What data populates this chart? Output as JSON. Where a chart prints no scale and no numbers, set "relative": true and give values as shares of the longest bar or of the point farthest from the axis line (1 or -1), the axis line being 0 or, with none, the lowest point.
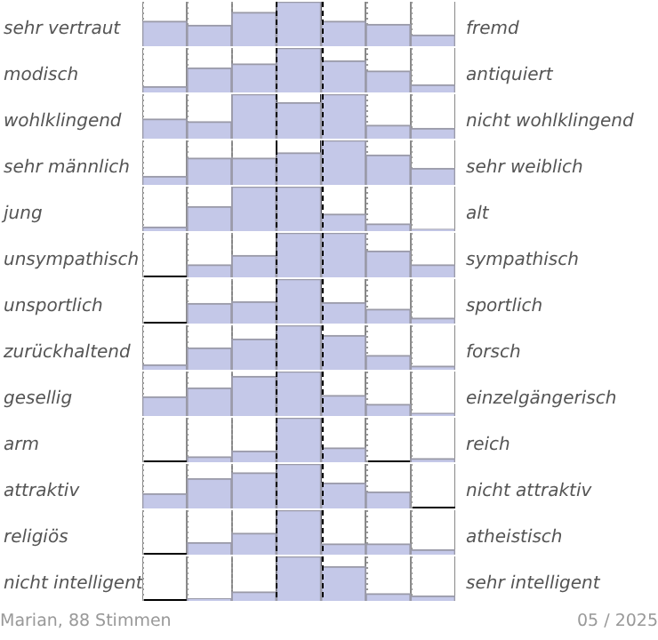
{
  "chart_data": [
    {
      "type": "bar",
      "relative": true,
      "ylabel": "sehr vertraut",
      "y2label": "fremd",
      "categories": [
        null,
        null,
        null,
        null,
        null,
        null,
        null
      ],
      "values": [
        0.56,
        0.47,
        0.76,
        1,
        0.56,
        0.49,
        0.25
      ],
      "color": "#c4c8e8",
      "grid": "x",
      "tick_labels": false
    },
    {
      "type": "bar",
      "relative": true,
      "ylabel": "modisch",
      "y2label": "antiquiert",
      "categories": [
        null,
        null,
        null,
        null,
        null,
        null,
        null
      ],
      "values": [
        0.13,
        0.55,
        0.64,
        1,
        0.71,
        0.48,
        0.17
      ],
      "color": "#c4c8e8",
      "grid": "x",
      "tick_labels": false
    },
    {
      "type": "bar",
      "relative": true,
      "ylabel": "wohlklingend",
      "y2label": "nicht wohlklingend",
      "categories": [
        null,
        null,
        null,
        null,
        null,
        null,
        null
      ],
      "values": [
        0.44,
        0.38,
        1,
        0.81,
        1,
        0.3,
        0.23
      ],
      "color": "#c4c8e8",
      "grid": "x",
      "tick_labels": false
    },
    {
      "type": "bar",
      "relative": true,
      "ylabel": "sehr männlich",
      "y2label": "sehr weiblich",
      "categories": [
        null,
        null,
        null,
        null,
        null,
        null,
        null
      ],
      "values": [
        0.19,
        0.6,
        0.6,
        0.72,
        1,
        0.67,
        0.37
      ],
      "color": "#c4c8e8",
      "grid": "x",
      "tick_labels": false
    },
    {
      "type": "bar",
      "relative": true,
      "ylabel": "jung",
      "y2label": "alt",
      "categories": [
        null,
        null,
        null,
        null,
        null,
        null,
        null
      ],
      "values": [
        0.09,
        0.55,
        1,
        1,
        0.38,
        0.16,
        0.04
      ],
      "color": "#c4c8e8",
      "grid": "x",
      "tick_labels": false
    },
    {
      "type": "bar",
      "relative": true,
      "ylabel": "unsympathisch",
      "y2label": "sympathisch",
      "categories": [
        null,
        null,
        null,
        null,
        null,
        null,
        null
      ],
      "values": [
        0,
        0.28,
        0.49,
        1,
        1,
        0.59,
        0.28
      ],
      "color": "#c4c8e8",
      "grid": "x",
      "tick_labels": false
    },
    {
      "type": "bar",
      "relative": true,
      "ylabel": "unsportlich",
      "y2label": "sportlich",
      "categories": [
        null,
        null,
        null,
        null,
        null,
        null,
        null
      ],
      "values": [
        0,
        0.45,
        0.49,
        1,
        0.47,
        0.32,
        0.12
      ],
      "color": "#c4c8e8",
      "grid": "x",
      "tick_labels": false
    },
    {
      "type": "bar",
      "relative": true,
      "ylabel": "zurückhaltend",
      "y2label": "forsch",
      "categories": [
        null,
        null,
        null,
        null,
        null,
        null,
        null
      ],
      "values": [
        0.11,
        0.49,
        0.69,
        1,
        0.77,
        0.32,
        0.08
      ],
      "color": "#c4c8e8",
      "grid": "x",
      "tick_labels": false
    },
    {
      "type": "bar",
      "relative": true,
      "ylabel": "gesellig",
      "y2label": "einzelgängerisch",
      "categories": [
        null,
        null,
        null,
        null,
        null,
        null,
        null
      ],
      "values": [
        0.43,
        0.63,
        0.89,
        1,
        0.46,
        0.26,
        0.06
      ],
      "color": "#c4c8e8",
      "grid": "x",
      "tick_labels": false
    },
    {
      "type": "bar",
      "relative": true,
      "ylabel": "arm",
      "y2label": "reich",
      "categories": [
        null,
        null,
        null,
        null,
        null,
        null,
        null
      ],
      "values": [
        0,
        0.12,
        0.25,
        1,
        0.32,
        0,
        0.08
      ],
      "color": "#c4c8e8",
      "grid": "x",
      "tick_labels": false
    },
    {
      "type": "bar",
      "relative": true,
      "ylabel": "attraktiv",
      "y2label": "nicht attraktiv",
      "categories": [
        null,
        null,
        null,
        null,
        null,
        null,
        null
      ],
      "values": [
        0.33,
        0.67,
        0.8,
        1,
        0.57,
        0.37,
        0
      ],
      "color": "#c4c8e8",
      "grid": "x",
      "tick_labels": false
    },
    {
      "type": "bar",
      "relative": true,
      "ylabel": "religiös",
      "y2label": "atheistisch",
      "categories": [
        null,
        null,
        null,
        null,
        null,
        null,
        null
      ],
      "values": [
        0,
        0.27,
        0.48,
        1,
        0.24,
        0.24,
        0.11
      ],
      "color": "#c4c8e8",
      "grid": "x",
      "tick_labels": false
    },
    {
      "type": "bar",
      "relative": true,
      "ylabel": "nicht intelligent",
      "y2label": "sehr intelligent",
      "categories": [
        null,
        null,
        null,
        null,
        null,
        null,
        null
      ],
      "values": [
        0,
        0.05,
        0.2,
        1,
        0.77,
        0.16,
        0.11
      ],
      "color": "#c4c8e8",
      "grid": "x",
      "tick_labels": false,
      "annotations": [
        "Marian, 88 Stimmen",
        "05 / 2025"
      ]
    }
  ]
}
